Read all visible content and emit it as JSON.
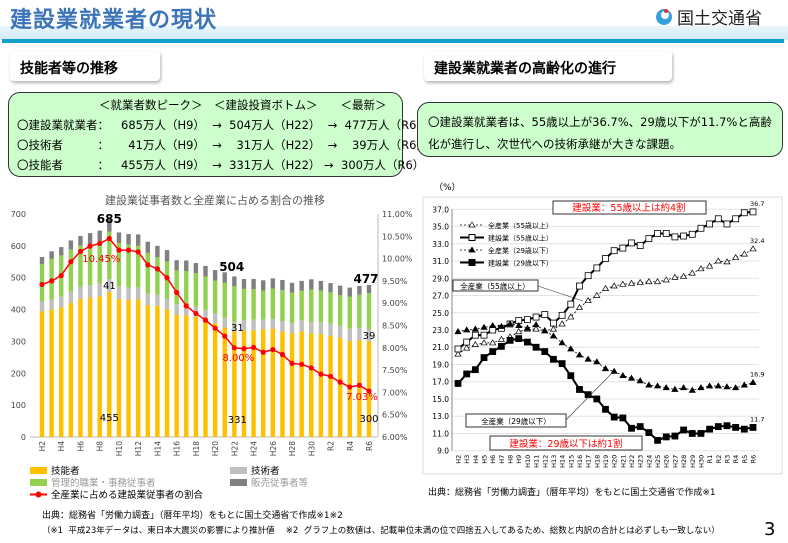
{
  "header": {
    "title": "建設業就業者の現状",
    "ministry": "国土交通省"
  },
  "left": {
    "section_title": "技能者等の推移",
    "summary": {
      "header": "＜就業者数ピーク＞　＜建設投資ボトム＞　　＜最新＞",
      "rows": [
        {
          "label": "〇建設業就業者：",
          "text": "685万人（H9）  →  504万人（H22）  →  477万人（R6）"
        },
        {
          "label": "〇技術者　　　：",
          "text": "  41万人（H9）  →    31万人（H22）  →    39万人（R6）"
        },
        {
          "label": "〇技能者　　　：",
          "text": "455万人（H9）  →  331万人（H22） →  300万人（R6）"
        }
      ]
    },
    "legend": [
      "技能者",
      "技術者",
      "管理的職業・事務従事者",
      "販売従事者等",
      "全産業に占める建設業従事者の割合"
    ],
    "source": "出典：総務省「労働力調査」（暦年平均）をもとに国土交通省で作成※1※2",
    "note": "（※1  平成23年データは、東日本大震災の影響により推計値　 ※2  グラフ上の数値は、記載単位未満の位で四捨五入してあるため、総数と内訳の合計とは必ずしも一致しない）"
  },
  "right": {
    "section_title": "建設業就業者の高齢化の進行",
    "summary": "〇建設業就業者は、55歳以上が36.7%、29歳以下が11.7%と高齢化が進行し、次世代への技術承継が大きな課題。",
    "source": "出典：総務省「労働力調査」（暦年平均）をもとに国土交通省で作成※1"
  },
  "page_number": "3",
  "chart_data": [
    {
      "type": "bar",
      "stacked": true,
      "title": "建設業従事者数と全産業に占める割合の推移",
      "categories": [
        "H2",
        "H3",
        "H4",
        "H5",
        "H6",
        "H7",
        "H8",
        "H9",
        "H10",
        "H11",
        "H12",
        "H13",
        "H14",
        "H15",
        "H16",
        "H17",
        "H18",
        "H19",
        "H20",
        "H21",
        "H22",
        "H23",
        "H24",
        "H25",
        "H26",
        "H27",
        "H28",
        "H29",
        "H30",
        "R1",
        "R2",
        "R3",
        "R4",
        "R5",
        "R6"
      ],
      "ylim": [
        0,
        700
      ],
      "yticks": [
        0,
        100,
        200,
        300,
        400,
        500,
        600,
        700
      ],
      "y2lim": [
        6,
        11
      ],
      "y2ticks": [
        "6.00%",
        "6.50%",
        "7.00%",
        "7.50%",
        "8.00%",
        "8.50%",
        "9.00%",
        "9.50%",
        "10.00%",
        "10.50%",
        "11.00%"
      ],
      "total": [
        565,
        583,
        596,
        617,
        631,
        640,
        648,
        685,
        642,
        637,
        636,
        613,
        600,
        587,
        555,
        554,
        546,
        537,
        524,
        517,
        504,
        496,
        496,
        492,
        498,
        493,
        484,
        490,
        495,
        490,
        483,
        475,
        469,
        474,
        477
      ],
      "series": [
        {
          "name": "技能者",
          "color": "#ffc000",
          "values": [
            395,
            400,
            407,
            420,
            433,
            438,
            442,
            455,
            433,
            431,
            432,
            414,
            412,
            401,
            384,
            381,
            377,
            367,
            357,
            343,
            331,
            334,
            335,
            338,
            340,
            331,
            325,
            331,
            325,
            323,
            318,
            311,
            301,
            304,
            300
          ]
        },
        {
          "name": "技術者",
          "color": "#bfbfbf",
          "values": [
            30,
            31,
            33,
            36,
            38,
            39,
            40,
            41,
            40,
            38,
            37,
            36,
            35,
            34,
            33,
            32,
            32,
            32,
            31,
            31,
            31,
            32,
            33,
            30,
            30,
            33,
            33,
            35,
            35,
            37,
            38,
            38,
            39,
            38,
            39
          ]
        },
        {
          "name": "販売従事者等",
          "color": "#808080",
          "values": [
            22,
            24,
            26,
            28,
            30,
            35,
            33,
            40,
            33,
            33,
            36,
            35,
            35,
            36,
            32,
            33,
            32,
            33,
            33,
            32,
            31,
            31,
            32,
            32,
            32,
            32,
            31,
            31,
            32,
            30,
            29,
            30,
            28,
            27,
            25
          ]
        },
        {
          "name": "全産業に占める建設業従事者の割合",
          "type": "line",
          "axis": "right",
          "color": "#ff0000",
          "values": [
            9.42,
            9.5,
            9.62,
            9.93,
            10.16,
            10.28,
            10.34,
            10.45,
            10.19,
            10.19,
            10.15,
            9.86,
            9.77,
            9.57,
            9.24,
            8.94,
            8.77,
            8.62,
            8.44,
            8.26,
            8.0,
            7.98,
            8.01,
            7.9,
            7.96,
            7.85,
            7.65,
            7.63,
            7.55,
            7.41,
            7.36,
            7.23,
            7.12,
            7.16,
            7.03
          ]
        }
      ],
      "management_color": "#92d050",
      "labels": {
        "peak_total": "685",
        "peak_ratio": "10.45%",
        "peak_eng": "41",
        "peak_skill": "455",
        "bottom_total": "504",
        "bottom_eng": "31",
        "bottom_ratio": "8.00%",
        "bottom_skill": "331",
        "latest_total": "477",
        "latest_eng": "39",
        "latest_ratio": "7.03%",
        "latest_skill": "300"
      }
    },
    {
      "type": "line",
      "ylabel": "（%）",
      "categories": [
        "H2",
        "H3",
        "H4",
        "H5",
        "H6",
        "H7",
        "H8",
        "H9",
        "H10",
        "H11",
        "H12",
        "H13",
        "H14",
        "H15",
        "H16",
        "H17",
        "H18",
        "H19",
        "H20",
        "H21",
        "H22",
        "H23",
        "H24",
        "H25",
        "H26",
        "H27",
        "H28",
        "H29",
        "H30",
        "R1",
        "R2",
        "R3",
        "R4",
        "R5",
        "R6"
      ],
      "ylim": [
        9,
        37
      ],
      "yticks": [
        "9.0",
        "11.0",
        "13.0",
        "15.0",
        "17.0",
        "19.0",
        "21.0",
        "23.0",
        "25.0",
        "27.0",
        "29.0",
        "31.0",
        "33.0",
        "35.0",
        "37.0"
      ],
      "series": [
        {
          "name": "全産業（55歳以上）",
          "style": "dashed",
          "marker": "open-triangle",
          "values": [
            20.2,
            20.9,
            21.3,
            21.5,
            21.5,
            21.9,
            22.2,
            22.8,
            23.1,
            23.1,
            22.9,
            23.1,
            23.7,
            24.5,
            25.6,
            26.4,
            27.0,
            27.8,
            28.1,
            28.3,
            28.4,
            28.5,
            28.6,
            28.6,
            28.8,
            29.1,
            29.2,
            29.6,
            30.1,
            30.4,
            31.0,
            30.9,
            31.4,
            31.8,
            32.4
          ]
        },
        {
          "name": "建設業（55歳以上）",
          "style": "solid",
          "marker": "open-square",
          "values": [
            20.8,
            21.6,
            22.4,
            22.4,
            23.0,
            23.2,
            23.7,
            24.1,
            24.2,
            24.5,
            24.8,
            23.8,
            24.7,
            26.0,
            28.1,
            29.3,
            30.2,
            31.3,
            32.2,
            32.5,
            33.1,
            32.8,
            33.6,
            34.2,
            34.2,
            33.8,
            33.9,
            34.1,
            34.8,
            35.3,
            35.9,
            35.3,
            35.9,
            36.6,
            36.7
          ]
        },
        {
          "name": "全産業（29歳以下）",
          "style": "dashed",
          "marker": "filled-triangle",
          "values": [
            22.8,
            23.0,
            23.1,
            23.3,
            23.5,
            23.4,
            23.7,
            23.5,
            23.2,
            23.6,
            22.9,
            22.3,
            21.5,
            20.8,
            20.1,
            19.6,
            19.3,
            18.5,
            18.2,
            17.7,
            17.4,
            17.1,
            16.6,
            16.5,
            16.3,
            16.1,
            16.3,
            16.0,
            16.3,
            16.5,
            16.5,
            16.4,
            16.3,
            16.6,
            16.9
          ]
        },
        {
          "name": "建設業（29歳以下）",
          "style": "solid",
          "marker": "filled-square",
          "values": [
            16.8,
            17.9,
            18.4,
            19.8,
            20.5,
            21.1,
            21.8,
            22.0,
            21.6,
            21.0,
            20.5,
            19.6,
            19.1,
            17.7,
            16.1,
            15.5,
            15.0,
            13.8,
            12.9,
            12.8,
            11.6,
            11.8,
            11.1,
            10.2,
            10.6,
            10.7,
            11.4,
            11.0,
            11.0,
            11.5,
            11.8,
            11.9,
            11.7,
            11.5,
            11.7
          ]
        }
      ],
      "end_labels": [
        "32.4",
        "36.7",
        "16.9",
        "11.7"
      ],
      "annotations": {
        "top_callout": "建設業：55歳以上は約4割",
        "bottom_callout": "建設業：29歳以下は約1割",
        "all55": "全産業（55歳以上）",
        "all29": "全産業（29歳以下）"
      }
    }
  ]
}
